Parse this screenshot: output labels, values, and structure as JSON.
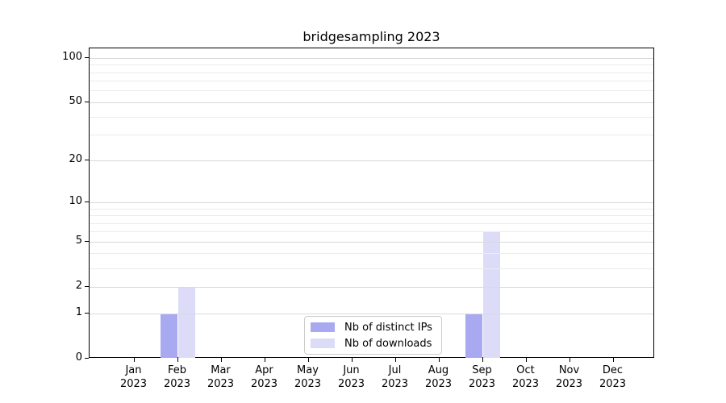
{
  "figure": {
    "title": "bridgesampling 2023"
  },
  "chart_data": {
    "type": "bar",
    "title": "bridgesampling 2023",
    "categories": [
      "Jan 2023",
      "Feb 2023",
      "Mar 2023",
      "Apr 2023",
      "May 2023",
      "Jun 2023",
      "Jul 2023",
      "Aug 2023",
      "Sep 2023",
      "Oct 2023",
      "Nov 2023",
      "Dec 2023"
    ],
    "series": [
      {
        "name": "Nb of distinct IPs",
        "color": "#a9a9f2",
        "values": [
          0,
          1,
          0,
          0,
          0,
          0,
          0,
          0,
          1,
          0,
          0,
          0
        ]
      },
      {
        "name": "Nb of downloads",
        "color": "#dcdcf8",
        "values": [
          0,
          2,
          0,
          0,
          0,
          0,
          0,
          0,
          6,
          0,
          0,
          0
        ]
      }
    ],
    "xlabel": "",
    "ylabel": "",
    "yscale": "log1p",
    "ylim": [
      0,
      115
    ],
    "y_major_ticks": [
      0,
      1,
      2,
      5,
      10,
      20,
      50,
      100
    ],
    "y_minor_ticks": [
      3,
      4,
      6,
      7,
      8,
      9,
      30,
      40,
      60,
      70,
      80,
      90
    ],
    "grid": "horizontal, major and minor, drawn above bars",
    "legend_position": "lower center"
  },
  "legend": {
    "items": [
      {
        "label": "Nb of distinct IPs",
        "color": "#a9a9f2"
      },
      {
        "label": "Nb of downloads",
        "color": "#dcdcf8"
      }
    ]
  },
  "colors": {
    "background": "#ffffff",
    "frame": "#000000",
    "major_grid": "#d9d9d9",
    "minor_grid": "#ececec",
    "bar_distinct_ips": "#a9a9f2",
    "bar_downloads": "#dcdcf8",
    "legend_border": "#cccccc",
    "text": "#000000"
  }
}
